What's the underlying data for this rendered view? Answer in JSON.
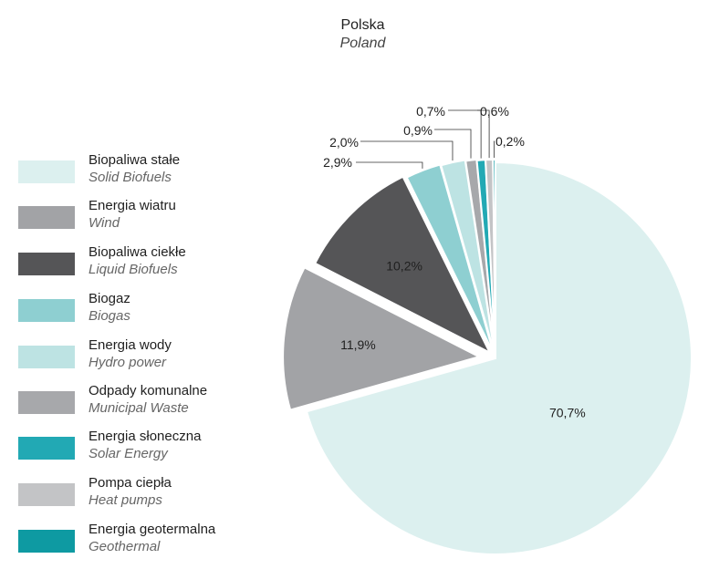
{
  "chart_data": {
    "type": "pie",
    "title": "Polska",
    "subtitle": "Poland",
    "legend_position": "left",
    "series": [
      {
        "name_pl": "Biopaliwa stałe",
        "name_en": "Solid Biofuels",
        "value": 70.7,
        "label": "70,7%",
        "color": "#dcf0ef"
      },
      {
        "name_pl": "Energia wiatru",
        "name_en": "Wind",
        "value": 11.9,
        "label": "11,9%",
        "color": "#a2a3a6"
      },
      {
        "name_pl": "Biopaliwa ciekłe",
        "name_en": "Liquid Biofuels",
        "value": 10.2,
        "label": "10,2%",
        "color": "#555557"
      },
      {
        "name_pl": "Biogaz",
        "name_en": "Biogas",
        "value": 2.9,
        "label": "2,9%",
        "color": "#8ecfd1"
      },
      {
        "name_pl": "Energia wody",
        "name_en": "Hydro power",
        "value": 2.0,
        "label": "2,0%",
        "color": "#bde3e3"
      },
      {
        "name_pl": "Odpady komunalne",
        "name_en": "Municipal Waste",
        "value": 0.9,
        "label": "0,9%",
        "color": "#a7a8ab"
      },
      {
        "name_pl": "Energia słoneczna",
        "name_en": "Solar Energy",
        "value": 0.7,
        "label": "0,7%",
        "color": "#22a9b4"
      },
      {
        "name_pl": "Pompa ciepła",
        "name_en": "Heat pumps",
        "value": 0.6,
        "label": "0,6%",
        "color": "#c3c4c6"
      },
      {
        "name_pl": "Energia geotermalna",
        "name_en": "Geothermal",
        "value": 0.2,
        "label": "0,2%",
        "color": "#0e9aa2"
      }
    ]
  }
}
